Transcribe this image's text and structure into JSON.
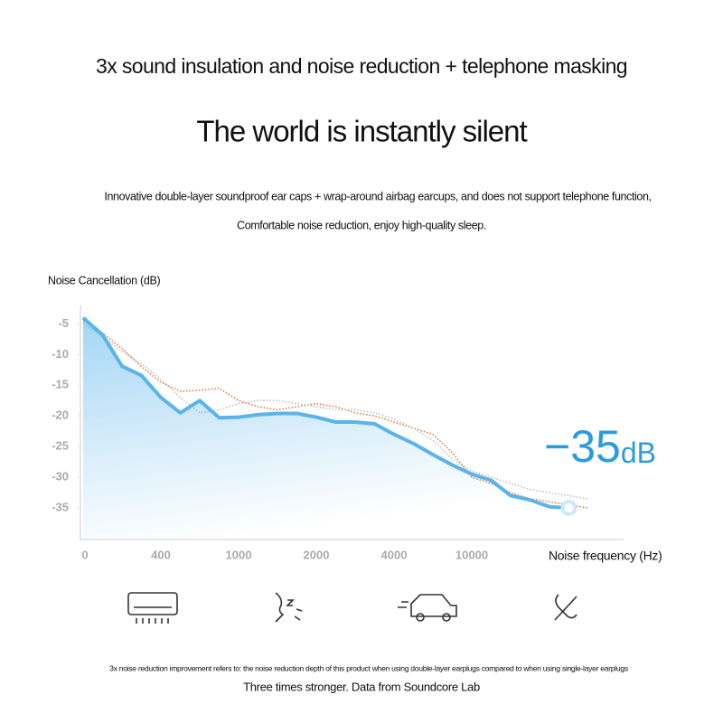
{
  "header": {
    "tagline": "3x sound insulation and noise reduction + telephone masking",
    "headline": "The world is instantly silent",
    "description": [
      "Innovative double-layer soundproof ear caps + wrap-around airbag earcups, and does not support telephone function,",
      "Comfortable noise reduction, enjoy high-quality sleep."
    ]
  },
  "chart_data": {
    "type": "line",
    "y_label": "Noise Cancellation (dB)",
    "x_label": "Noise frequency (Hz)",
    "categories": [
      "0",
      null,
      null,
      null,
      "400",
      null,
      null,
      null,
      "1000",
      null,
      null,
      null,
      "2000",
      null,
      null,
      null,
      "4000",
      null,
      null,
      null,
      "10000",
      null,
      null,
      null,
      null,
      null,
      null
    ],
    "ylim": [
      -40,
      -2
    ],
    "yticks": [
      -5,
      -10,
      -15,
      -20,
      -25,
      -30,
      -35
    ],
    "series": [
      {
        "color": "#e0713a",
        "style": "dotted",
        "values": [
          -4.5,
          -6.5,
          -9,
          -12,
          -14.5,
          -16,
          -15.8,
          -15.5,
          -17.5,
          -18.5,
          -19,
          -18.5,
          -18,
          -18.5,
          -19.5,
          -20,
          -21,
          -22,
          -23,
          -26,
          -30,
          -31,
          -32.5,
          -33.5,
          -34,
          -34.5,
          -35
        ]
      },
      {
        "color": "#bbbbbb",
        "style": "dotted",
        "values": [
          -5,
          -7,
          -9.5,
          -11.5,
          -14,
          -17,
          -19.5,
          -19,
          -18,
          -17.5,
          -17.5,
          -18,
          -18.5,
          -19,
          -19,
          -19.5,
          -20.5,
          -22,
          -24,
          -27,
          -29,
          -30,
          -31,
          -32,
          -32.5,
          -33,
          -33.5
        ]
      },
      {
        "color": "#5ab4ec",
        "style": "solid",
        "values": [
          -4,
          -6.8,
          -11.9,
          -13.4,
          -17,
          -19.5,
          -17.5,
          -20.3,
          -20.2,
          -19.8,
          -19.6,
          -19.6,
          -20.2,
          -21,
          -21,
          -21.3,
          -23,
          -24.5,
          -26.3,
          -28,
          -29.5,
          -30.5,
          -33,
          -33.7,
          -34.8,
          -35,
          null
        ]
      }
    ],
    "annotation": {
      "value": "−35",
      "unit": "dB"
    }
  },
  "footer": {
    "note": "3x noise reduction improvement refers to: the noise reduction depth of this product when using double-layer earplugs compared to when using single-layer earplugs",
    "source": "Three times stronger. Data from Soundcore Lab"
  }
}
